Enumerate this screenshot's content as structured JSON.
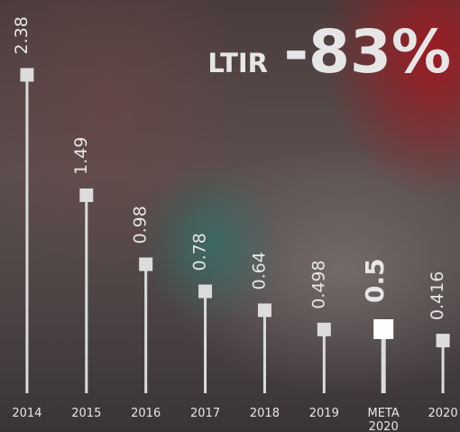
{
  "chart_data": {
    "type": "lollipop",
    "headline_label": "LTIR",
    "headline_value": "-83%",
    "categories": [
      "2014",
      "2015",
      "2016",
      "2017",
      "2018",
      "2019",
      "META 2020",
      "2020"
    ],
    "values": [
      2.38,
      1.49,
      0.98,
      0.78,
      0.64,
      0.498,
      0.5,
      0.416
    ],
    "emphasized": [
      false,
      false,
      false,
      false,
      false,
      false,
      true,
      false
    ],
    "color": "#dcdcdc",
    "ylim": [
      0,
      2.4
    ],
    "grid": false
  }
}
